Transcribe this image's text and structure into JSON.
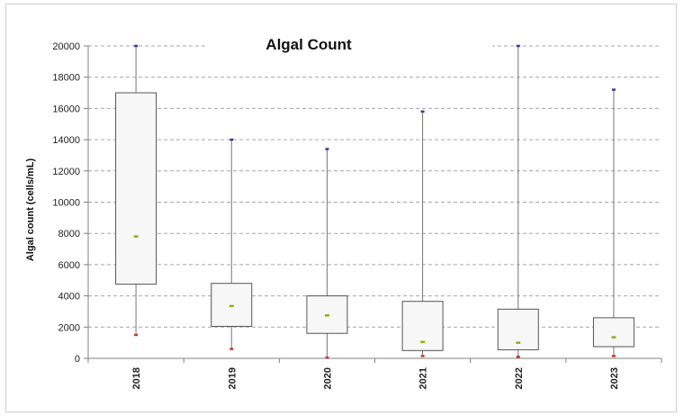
{
  "chart_data": {
    "type": "box",
    "title": "Algal Count",
    "xlabel": "",
    "ylabel": "Algal count (cells/mL)",
    "ylim": [
      0,
      20000
    ],
    "y_ticks": [
      "0",
      "2000",
      "4000",
      "6000",
      "8000",
      "10000",
      "12000",
      "14000",
      "16000",
      "18000",
      "20000"
    ],
    "grid": true,
    "categories": [
      "2018",
      "2019",
      "2020",
      "2021",
      "2022",
      "2023"
    ],
    "boxes": [
      {
        "category": "2018",
        "min": 1500,
        "q1": 4750,
        "q3": 17000,
        "max": 20000,
        "mean": 7800
      },
      {
        "category": "2019",
        "min": 600,
        "q1": 2050,
        "q3": 4800,
        "max": 14000,
        "mean": 3350
      },
      {
        "category": "2020",
        "min": 50,
        "q1": 1600,
        "q3": 4000,
        "max": 13400,
        "mean": 2750
      },
      {
        "category": "2021",
        "min": 150,
        "q1": 500,
        "q3": 3650,
        "max": 15800,
        "mean": 1050
      },
      {
        "category": "2022",
        "min": 100,
        "q1": 550,
        "q3": 3150,
        "max": 20000,
        "mean": 1000
      },
      {
        "category": "2023",
        "min": 150,
        "q1": 750,
        "q3": 2600,
        "max": 17200,
        "mean": 1350
      }
    ],
    "colors": {
      "box_fill": "#f7f7f7",
      "box_stroke": "#555555",
      "whisker": "#777777",
      "grid": "#a6a6a6",
      "min_marker": "#c0392b",
      "max_marker": "#3a3aa0",
      "mean_marker": "#8fae1b"
    }
  }
}
